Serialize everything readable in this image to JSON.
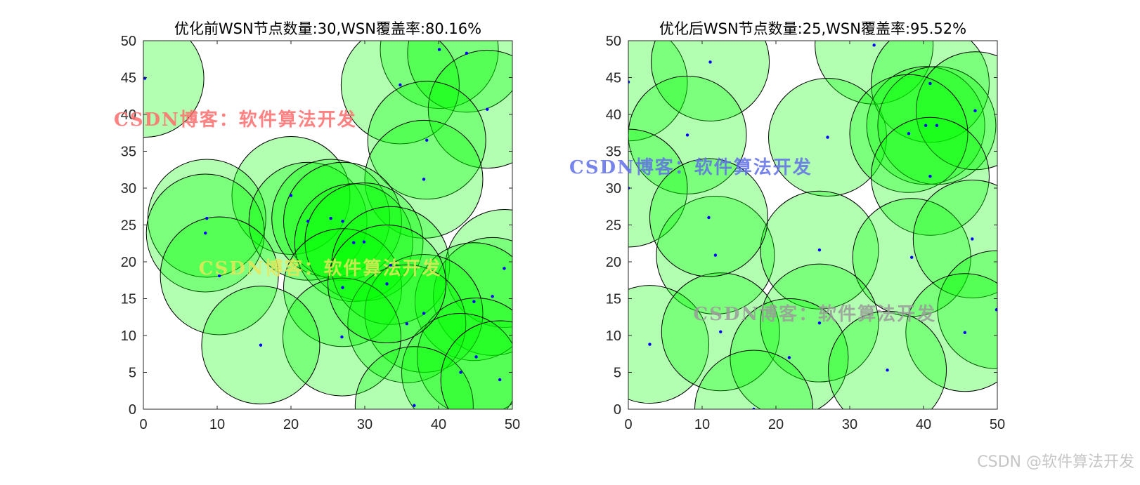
{
  "colors": {
    "circle_fill": "#00ff00",
    "circle_edge": "#000000",
    "node": "#0000ff",
    "axis": "#262626",
    "wm_red": "#ff6b6b",
    "wm_yellow": "#e6e65a",
    "wm_blue": "#5f6fe8",
    "wm_gray": "#9a9a9a"
  },
  "corner_watermark": "CSDN @软件算法开发",
  "chart_data": [
    {
      "type": "scatter",
      "title": "优化前WSN节点数量:30,WSN覆盖率:80.16%",
      "xlim": [
        0,
        50
      ],
      "ylim": [
        0,
        50
      ],
      "xticks": [
        "0",
        "10",
        "20",
        "30",
        "40",
        "50"
      ],
      "yticks": [
        "0",
        "5",
        "10",
        "15",
        "20",
        "25",
        "30",
        "35",
        "40",
        "45",
        "50"
      ],
      "sensing_radius": 8,
      "watermarks": [
        {
          "text": "CSDN博客：软件算法开发",
          "x": -4,
          "y": 38.5,
          "color_key": "wm_red"
        },
        {
          "text": "CSDN博客：软件算法开发",
          "x": 7.5,
          "y": 18.3,
          "color_key": "wm_yellow"
        }
      ],
      "nodes": [
        [
          0.2,
          44.9
        ],
        [
          40.1,
          48.8
        ],
        [
          43.8,
          48.3
        ],
        [
          34.8,
          44.0
        ],
        [
          46.6,
          40.7
        ],
        [
          38.4,
          36.5
        ],
        [
          38.0,
          31.2
        ],
        [
          20.0,
          29.0
        ],
        [
          8.6,
          25.9
        ],
        [
          8.4,
          23.9
        ],
        [
          22.3,
          25.5
        ],
        [
          25.4,
          25.9
        ],
        [
          27.0,
          25.5
        ],
        [
          28.5,
          22.6
        ],
        [
          29.9,
          22.7
        ],
        [
          10.3,
          18.1
        ],
        [
          27.0,
          16.5
        ],
        [
          33.5,
          19.5
        ],
        [
          48.9,
          19.1
        ],
        [
          47.3,
          15.3
        ],
        [
          44.8,
          14.6
        ],
        [
          38.0,
          13.0
        ],
        [
          35.7,
          11.6
        ],
        [
          26.9,
          9.8
        ],
        [
          15.9,
          8.7
        ],
        [
          45.1,
          7.1
        ],
        [
          43.0,
          5.0
        ],
        [
          36.7,
          0.5
        ],
        [
          48.3,
          4.0
        ],
        [
          33.0,
          17.0
        ]
      ]
    },
    {
      "type": "scatter",
      "title": "优化后WSN节点数量:25,WSN覆盖率:95.52%",
      "xlim": [
        0,
        50
      ],
      "ylim": [
        0,
        50
      ],
      "xticks": [
        "0",
        "10",
        "20",
        "30",
        "40",
        "50"
      ],
      "yticks": [
        "0",
        "5",
        "10",
        "15",
        "20",
        "25",
        "30",
        "35",
        "40",
        "45",
        "50"
      ],
      "sensing_radius": 8,
      "watermarks": [
        {
          "text": "CSDN博客：软件算法开发",
          "x": -8,
          "y": 32,
          "color_key": "wm_blue"
        },
        {
          "text": "CSDN博客：软件算法开发",
          "x": 8.8,
          "y": 12.1,
          "color_key": "wm_gray"
        }
      ],
      "nodes": [
        [
          0.0,
          44.4
        ],
        [
          11.1,
          47.1
        ],
        [
          33.3,
          49.4
        ],
        [
          8.0,
          37.2
        ],
        [
          27.0,
          36.9
        ],
        [
          40.9,
          44.2
        ],
        [
          40.3,
          38.5
        ],
        [
          41.8,
          38.5
        ],
        [
          47.0,
          40.5
        ],
        [
          38.0,
          37.4
        ],
        [
          40.9,
          31.6
        ],
        [
          0.0,
          30.0
        ],
        [
          11.8,
          20.9
        ],
        [
          25.9,
          21.6
        ],
        [
          38.4,
          20.6
        ],
        [
          46.6,
          23.1
        ],
        [
          49.9,
          13.5
        ],
        [
          45.6,
          10.4
        ],
        [
          2.9,
          8.8
        ],
        [
          12.5,
          10.5
        ],
        [
          25.9,
          11.7
        ],
        [
          21.8,
          7.0
        ],
        [
          35.1,
          5.3
        ],
        [
          17.0,
          0.0
        ],
        [
          10.9,
          26.0
        ]
      ]
    }
  ]
}
